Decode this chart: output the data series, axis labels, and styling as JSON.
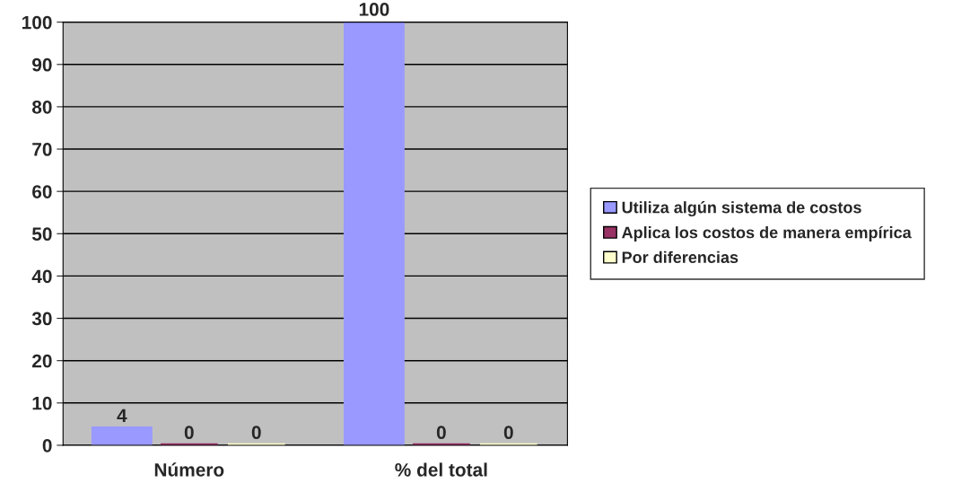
{
  "chart_data": {
    "type": "bar",
    "categories": [
      "Número",
      "% del total"
    ],
    "series": [
      {
        "name": "Utiliza algún sistema de costos",
        "color": "#9999ff",
        "values": [
          4,
          100
        ]
      },
      {
        "name": "Aplica los costos de manera empírica",
        "color": "#993366",
        "values": [
          0,
          0
        ]
      },
      {
        "name": "Por diferencias",
        "color": "#ffffcc",
        "values": [
          0,
          0
        ]
      }
    ],
    "ylim": [
      0,
      100
    ],
    "yticks": [
      0,
      10,
      20,
      30,
      40,
      50,
      60,
      70,
      80,
      90,
      100
    ],
    "grid": "y",
    "legend": "right",
    "data_labels": true
  }
}
